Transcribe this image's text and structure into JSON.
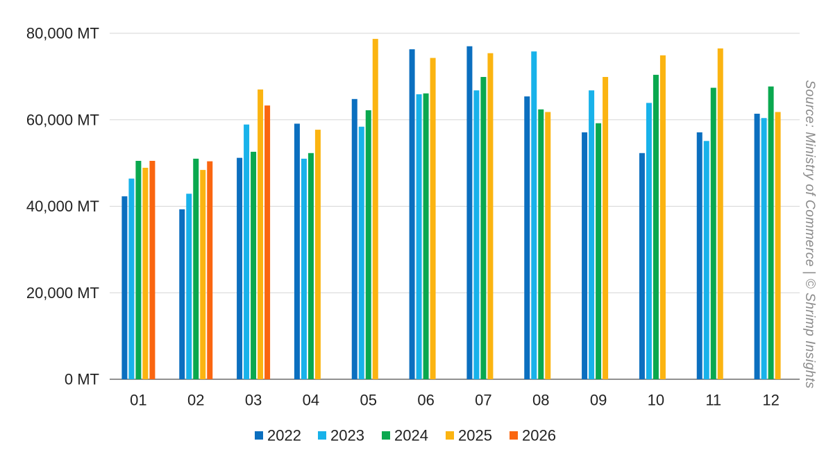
{
  "chart_data": {
    "type": "bar",
    "categories": [
      "01",
      "02",
      "03",
      "04",
      "05",
      "06",
      "07",
      "08",
      "09",
      "10",
      "11",
      "12"
    ],
    "series": [
      {
        "name": "2022",
        "color": "#0b6fbf",
        "values": [
          42300,
          39300,
          51200,
          59100,
          64800,
          76300,
          77000,
          65400,
          57100,
          52300,
          57100,
          61400
        ]
      },
      {
        "name": "2023",
        "color": "#18b2ea",
        "values": [
          46400,
          42900,
          58900,
          51000,
          58400,
          65900,
          66800,
          75800,
          66800,
          63900,
          55100,
          60400
        ]
      },
      {
        "name": "2024",
        "color": "#0aa84f",
        "values": [
          50500,
          51000,
          52600,
          52300,
          62200,
          66100,
          69900,
          62400,
          59200,
          70400,
          67400,
          67700
        ]
      },
      {
        "name": "2025",
        "color": "#fbb411",
        "values": [
          48900,
          48400,
          67000,
          57700,
          78700,
          74300,
          75400,
          61800,
          69900,
          74900,
          76500,
          61800
        ]
      },
      {
        "name": "2026",
        "color": "#fa6610",
        "values": [
          50500,
          50400,
          63300,
          null,
          null,
          null,
          null,
          null,
          null,
          null,
          null,
          null
        ]
      }
    ],
    "y_ticks": [
      "0 MT",
      "20,000 MT",
      "40,000 MT",
      "60,000 MT",
      "80,000 MT"
    ],
    "y_tick_values": [
      0,
      20000,
      40000,
      60000,
      80000
    ],
    "ylim": [
      0,
      80000
    ],
    "grid": true,
    "legend_position": "bottom",
    "source_note": "Source: Ministry of Commerce | © Shrimp Insights"
  }
}
